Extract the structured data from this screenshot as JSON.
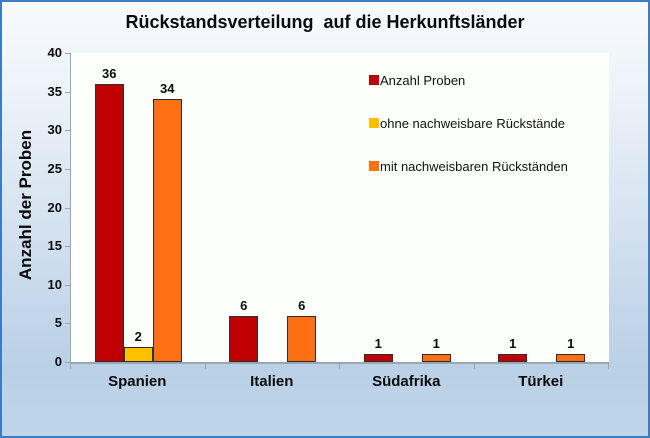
{
  "window": {
    "border_color": "#3E7CC1",
    "background_top": "#F7FAFD",
    "background_bottom": "#B9D0E6",
    "plot_background": "#FDFFFD",
    "axis_color": "#9AA5AF"
  },
  "chart_data": {
    "type": "bar",
    "title": "Rückstandsverteilung  auf die Herkunftsländer",
    "xlabel": "",
    "ylabel": "Anzahl der Proben",
    "categories": [
      "Spanien",
      "Italien",
      "Südafrika",
      "Türkei"
    ],
    "series": [
      {
        "name": "Anzahl Proben",
        "color": "#C00000",
        "values": [
          36,
          6,
          1,
          1
        ]
      },
      {
        "name": "ohne nachweisbare Rückstände",
        "color": "#FFC000",
        "values": [
          2,
          0,
          0,
          0
        ]
      },
      {
        "name": "mit nachweisbaren Rückständen",
        "color": "#FF6F14",
        "values": [
          34,
          6,
          1,
          1
        ]
      }
    ],
    "ylim": [
      0,
      40
    ],
    "yticks": [
      0,
      5,
      10,
      15,
      20,
      25,
      30,
      35,
      40
    ],
    "grid": false,
    "legend_position": "inside-right",
    "value_labels": "above bars, zero values hidden"
  }
}
